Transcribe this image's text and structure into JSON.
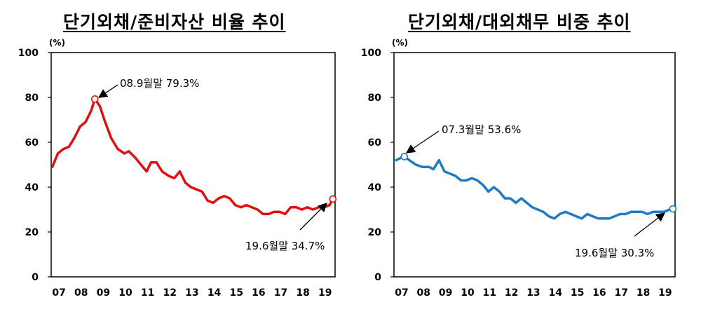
{
  "charts": [
    {
      "title": "단기외채/준비자산 비율 추이",
      "unit": "(%)",
      "color": "#e01010",
      "yticks": [
        "0",
        "20",
        "40",
        "60",
        "80",
        "100"
      ],
      "xticks": [
        "07",
        "08",
        "09",
        "10",
        "11",
        "12",
        "13",
        "14",
        "15",
        "16",
        "17",
        "18",
        "19"
      ],
      "annotations": [
        {
          "text": "08.9월말 79.3%",
          "x": 2008.67,
          "y": 79.3
        },
        {
          "text": "19.6월말 34.7%",
          "x": 2019.4,
          "y": 34.7
        }
      ]
    },
    {
      "title": "단기외채/대외채무 비중 추이",
      "unit": "(%)",
      "color": "#1f7ac7",
      "yticks": [
        "0",
        "20",
        "40",
        "60",
        "80",
        "100"
      ],
      "xticks": [
        "07",
        "08",
        "09",
        "10",
        "11",
        "12",
        "13",
        "14",
        "15",
        "16",
        "17",
        "18",
        "19"
      ],
      "annotations": [
        {
          "text": "07.3월말 53.6%",
          "x": 2007.17,
          "y": 53.6
        },
        {
          "text": "19.6월말 30.3%",
          "x": 2019.4,
          "y": 30.3
        }
      ]
    }
  ],
  "chart_data": [
    {
      "type": "line",
      "title": "단기외채/준비자산 비율 추이",
      "ylabel": "(%)",
      "ylim": [
        0,
        100
      ],
      "xlim": [
        2006.7,
        2019.5
      ],
      "grid": false,
      "series": [
        {
          "x": [
            2006.75,
            2007.0,
            2007.25,
            2007.5,
            2007.75,
            2008.0,
            2008.25,
            2008.5,
            2008.67,
            2008.9,
            2009.1,
            2009.4,
            2009.7,
            2010.0,
            2010.2,
            2010.5,
            2010.75,
            2011.0,
            2011.2,
            2011.45,
            2011.7,
            2012.0,
            2012.25,
            2012.5,
            2012.75,
            2013.0,
            2013.25,
            2013.5,
            2013.75,
            2014.0,
            2014.25,
            2014.5,
            2014.75,
            2015.0,
            2015.25,
            2015.5,
            2015.75,
            2016.0,
            2016.25,
            2016.5,
            2016.75,
            2017.0,
            2017.25,
            2017.5,
            2017.75,
            2018.0,
            2018.25,
            2018.5,
            2018.75,
            2019.0,
            2019.25,
            2019.4
          ],
          "y": [
            49,
            55,
            57,
            58,
            62,
            67,
            69,
            74,
            79.3,
            76,
            70,
            62,
            57,
            55,
            56,
            53,
            50,
            47,
            51,
            51,
            47,
            45,
            44,
            47,
            42,
            40,
            39,
            38,
            34,
            33,
            35,
            36,
            35,
            32,
            31,
            32,
            31,
            30,
            28,
            28,
            29,
            29,
            28,
            31,
            31,
            30,
            31,
            30,
            31,
            31,
            32,
            34.7
          ]
        }
      ]
    },
    {
      "type": "line",
      "title": "단기외채/대외채무 비중 추이",
      "ylabel": "(%)",
      "ylim": [
        0,
        100
      ],
      "xlim": [
        2006.7,
        2019.5
      ],
      "grid": false,
      "series": [
        {
          "x": [
            2006.8,
            2007.0,
            2007.17,
            2007.4,
            2007.7,
            2008.0,
            2008.3,
            2008.5,
            2008.75,
            2009.0,
            2009.25,
            2009.5,
            2009.75,
            2010.0,
            2010.25,
            2010.5,
            2010.75,
            2011.0,
            2011.25,
            2011.5,
            2011.75,
            2012.0,
            2012.25,
            2012.5,
            2012.75,
            2013.0,
            2013.25,
            2013.5,
            2013.75,
            2014.0,
            2014.25,
            2014.5,
            2014.75,
            2015.0,
            2015.25,
            2015.5,
            2015.75,
            2016.0,
            2016.25,
            2016.5,
            2016.75,
            2017.0,
            2017.25,
            2017.5,
            2017.75,
            2018.0,
            2018.25,
            2018.5,
            2018.75,
            2019.0,
            2019.25,
            2019.4
          ],
          "y": [
            52,
            53,
            53.6,
            52,
            50,
            49,
            49,
            48,
            52,
            47,
            46,
            45,
            43,
            43,
            44,
            43,
            41,
            38,
            40,
            38,
            35,
            35,
            33,
            35,
            33,
            31,
            30,
            29,
            27,
            26,
            28,
            29,
            28,
            27,
            26,
            28,
            27,
            26,
            26,
            26,
            27,
            28,
            28,
            29,
            29,
            29,
            28,
            29,
            29,
            29,
            30,
            30.3
          ]
        }
      ]
    }
  ]
}
